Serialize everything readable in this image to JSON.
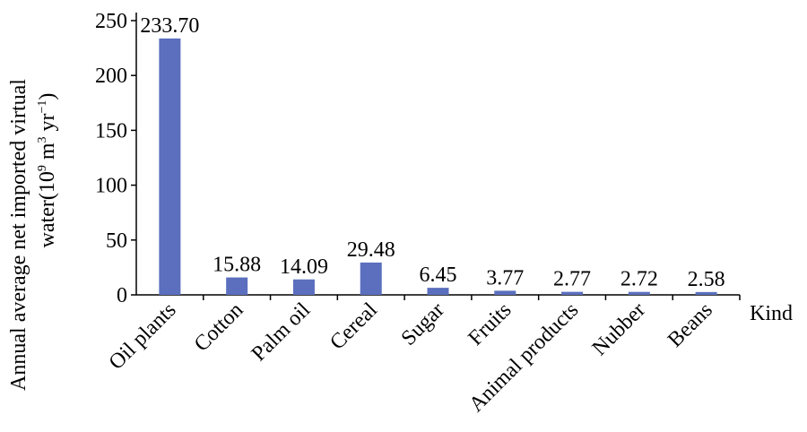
{
  "chart_data": {
    "type": "bar",
    "title": "",
    "xlabel": "Kind",
    "ylabel_line1": "Annual average net imported virtual",
    "ylabel_line2_prefix": "water(10",
    "ylabel_sup1": "9",
    "ylabel_mid": " m",
    "ylabel_sup2": "3",
    "ylabel_mid2": " yr",
    "ylabel_sup3": "−1",
    "ylabel_suffix": ")",
    "categories": [
      "Oil plants",
      "Cotton",
      "Palm oil",
      "Cereal",
      "Sugar",
      "Fruits",
      "Animal products",
      "Nubber",
      "Beans"
    ],
    "values": [
      233.7,
      15.88,
      14.09,
      29.48,
      6.45,
      3.77,
      2.77,
      2.72,
      2.58
    ],
    "value_labels": [
      "233.70",
      "15.88",
      "14.09",
      "29.48",
      "6.45",
      "3.77",
      "2.77",
      "2.72",
      "2.58"
    ],
    "ylim": [
      0,
      250
    ],
    "yticks": [
      0,
      50,
      100,
      150,
      200,
      250
    ],
    "ytick_labels": [
      "0",
      "50",
      "100",
      "150",
      "200",
      "250"
    ],
    "grid": false,
    "legend": "none",
    "bar_color": "#5B6FBE"
  }
}
